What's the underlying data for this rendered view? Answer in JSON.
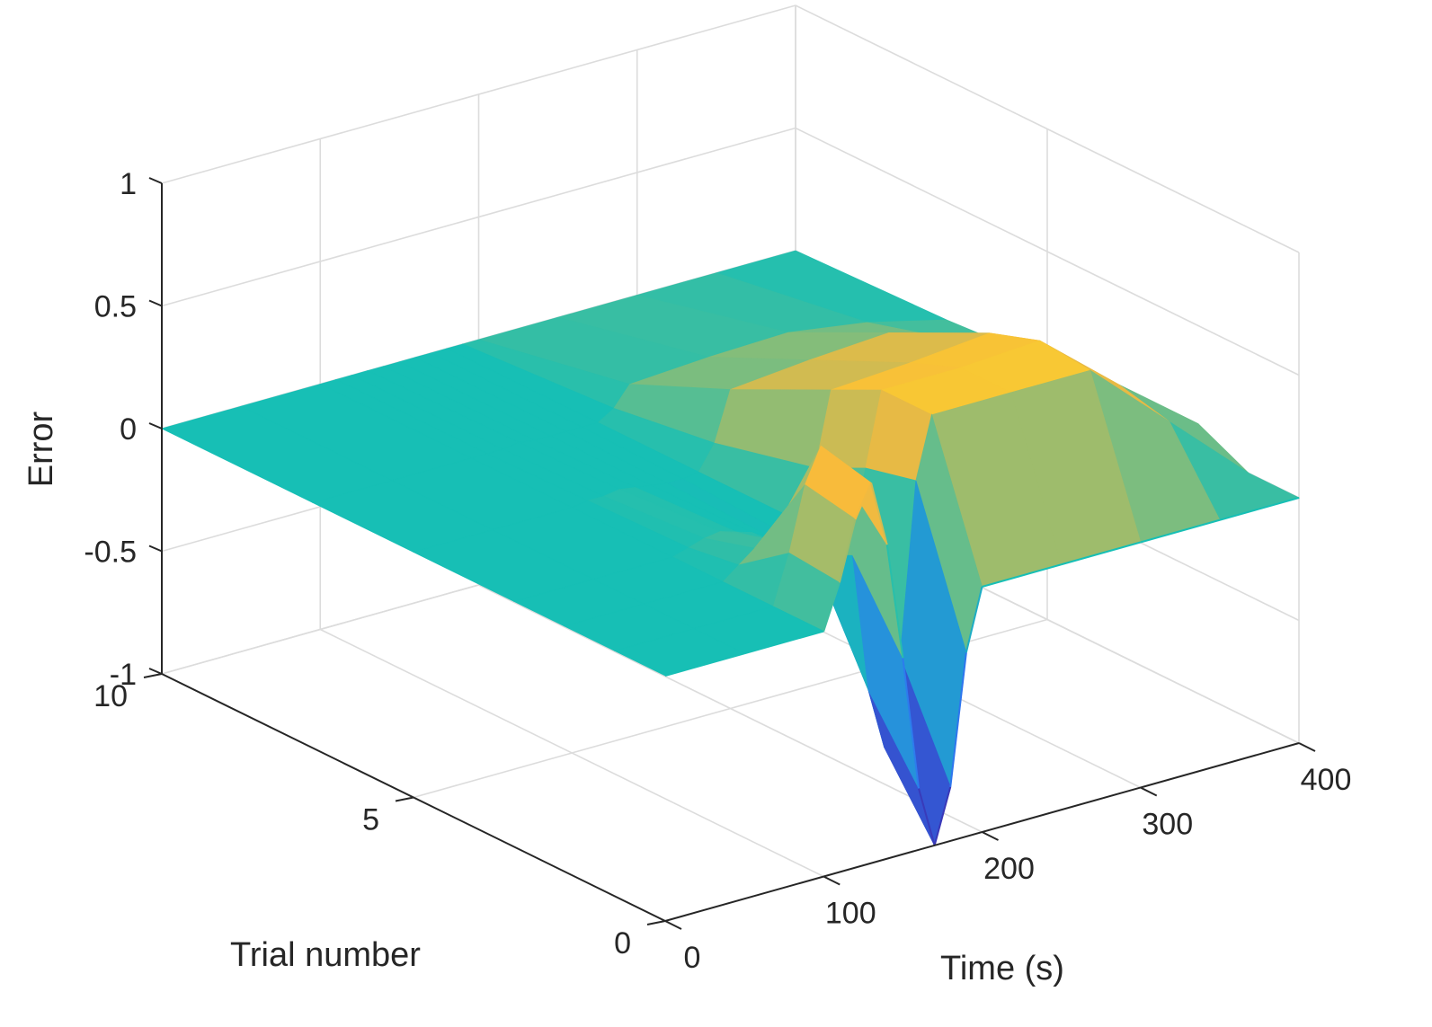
{
  "chart_data": {
    "type": "surface",
    "title": "",
    "xlabel": "Time (s)",
    "ylabel": "Trial number",
    "zlabel": "Error",
    "xlim": [
      0,
      400
    ],
    "ylim": [
      0,
      10
    ],
    "zlim": [
      -1,
      1
    ],
    "x_ticks": [
      "0",
      "100",
      "200",
      "300",
      "400"
    ],
    "y_ticks": [
      "0",
      "5",
      "10"
    ],
    "z_ticks": [
      "-1",
      "-0.5",
      "0",
      "0.5",
      "1"
    ],
    "grid": true,
    "colormap": "parula",
    "colors": {
      "flat": "#17bfb5",
      "low": "#3d26a8",
      "mid": "#2e9df2",
      "high": "#f9fb15",
      "orange": "#f8ba3c",
      "grid": "#dcdcdc",
      "axis": "#262626"
    },
    "x": [
      0,
      50,
      100,
      110,
      120,
      130,
      140,
      150,
      160,
      170,
      180,
      190,
      200,
      250,
      300,
      350,
      400
    ],
    "series": [
      {
        "trial": 0,
        "z": [
          0,
          0,
          0,
          0.18,
          0.42,
          0.55,
          0.28,
          -0.2,
          -0.75,
          -1.0,
          -0.78,
          -0.25,
          0,
          0,
          0,
          0,
          0
        ]
      },
      {
        "trial": 1,
        "z": [
          0,
          0,
          0,
          0.2,
          0.46,
          0.6,
          0.5,
          0.12,
          -0.45,
          -0.7,
          -0.35,
          0.35,
          0.6,
          0.6,
          0.6,
          0.3,
          0
        ]
      },
      {
        "trial": 2,
        "z": [
          0,
          0,
          0,
          0.05,
          0.1,
          0.12,
          0.08,
          0.02,
          -0.05,
          -0.06,
          0,
          0.3,
          0.6,
          0.6,
          0.62,
          0.35,
          0.1
        ]
      },
      {
        "trial": 3,
        "z": [
          0,
          0,
          0,
          0.02,
          0.04,
          0.05,
          0.03,
          0.01,
          -0.02,
          -0.03,
          0,
          0.2,
          0.5,
          0.52,
          0.55,
          0.32,
          0.08
        ]
      },
      {
        "trial": 5,
        "z": [
          0,
          0,
          0,
          0.01,
          0.01,
          0.02,
          0.01,
          0,
          -0.01,
          -0.01,
          0,
          0.1,
          0.3,
          0.33,
          0.35,
          0.22,
          0.05
        ]
      },
      {
        "trial": 7,
        "z": [
          0,
          0,
          0,
          0,
          0,
          0.01,
          0,
          0,
          0,
          0,
          0,
          0.04,
          0.12,
          0.14,
          0.15,
          0.1,
          0.02
        ]
      },
      {
        "trial": 10,
        "z": [
          0,
          0,
          0,
          0,
          0,
          0,
          0,
          0,
          0,
          0,
          0,
          0,
          0,
          0,
          0,
          0,
          0
        ]
      }
    ]
  }
}
